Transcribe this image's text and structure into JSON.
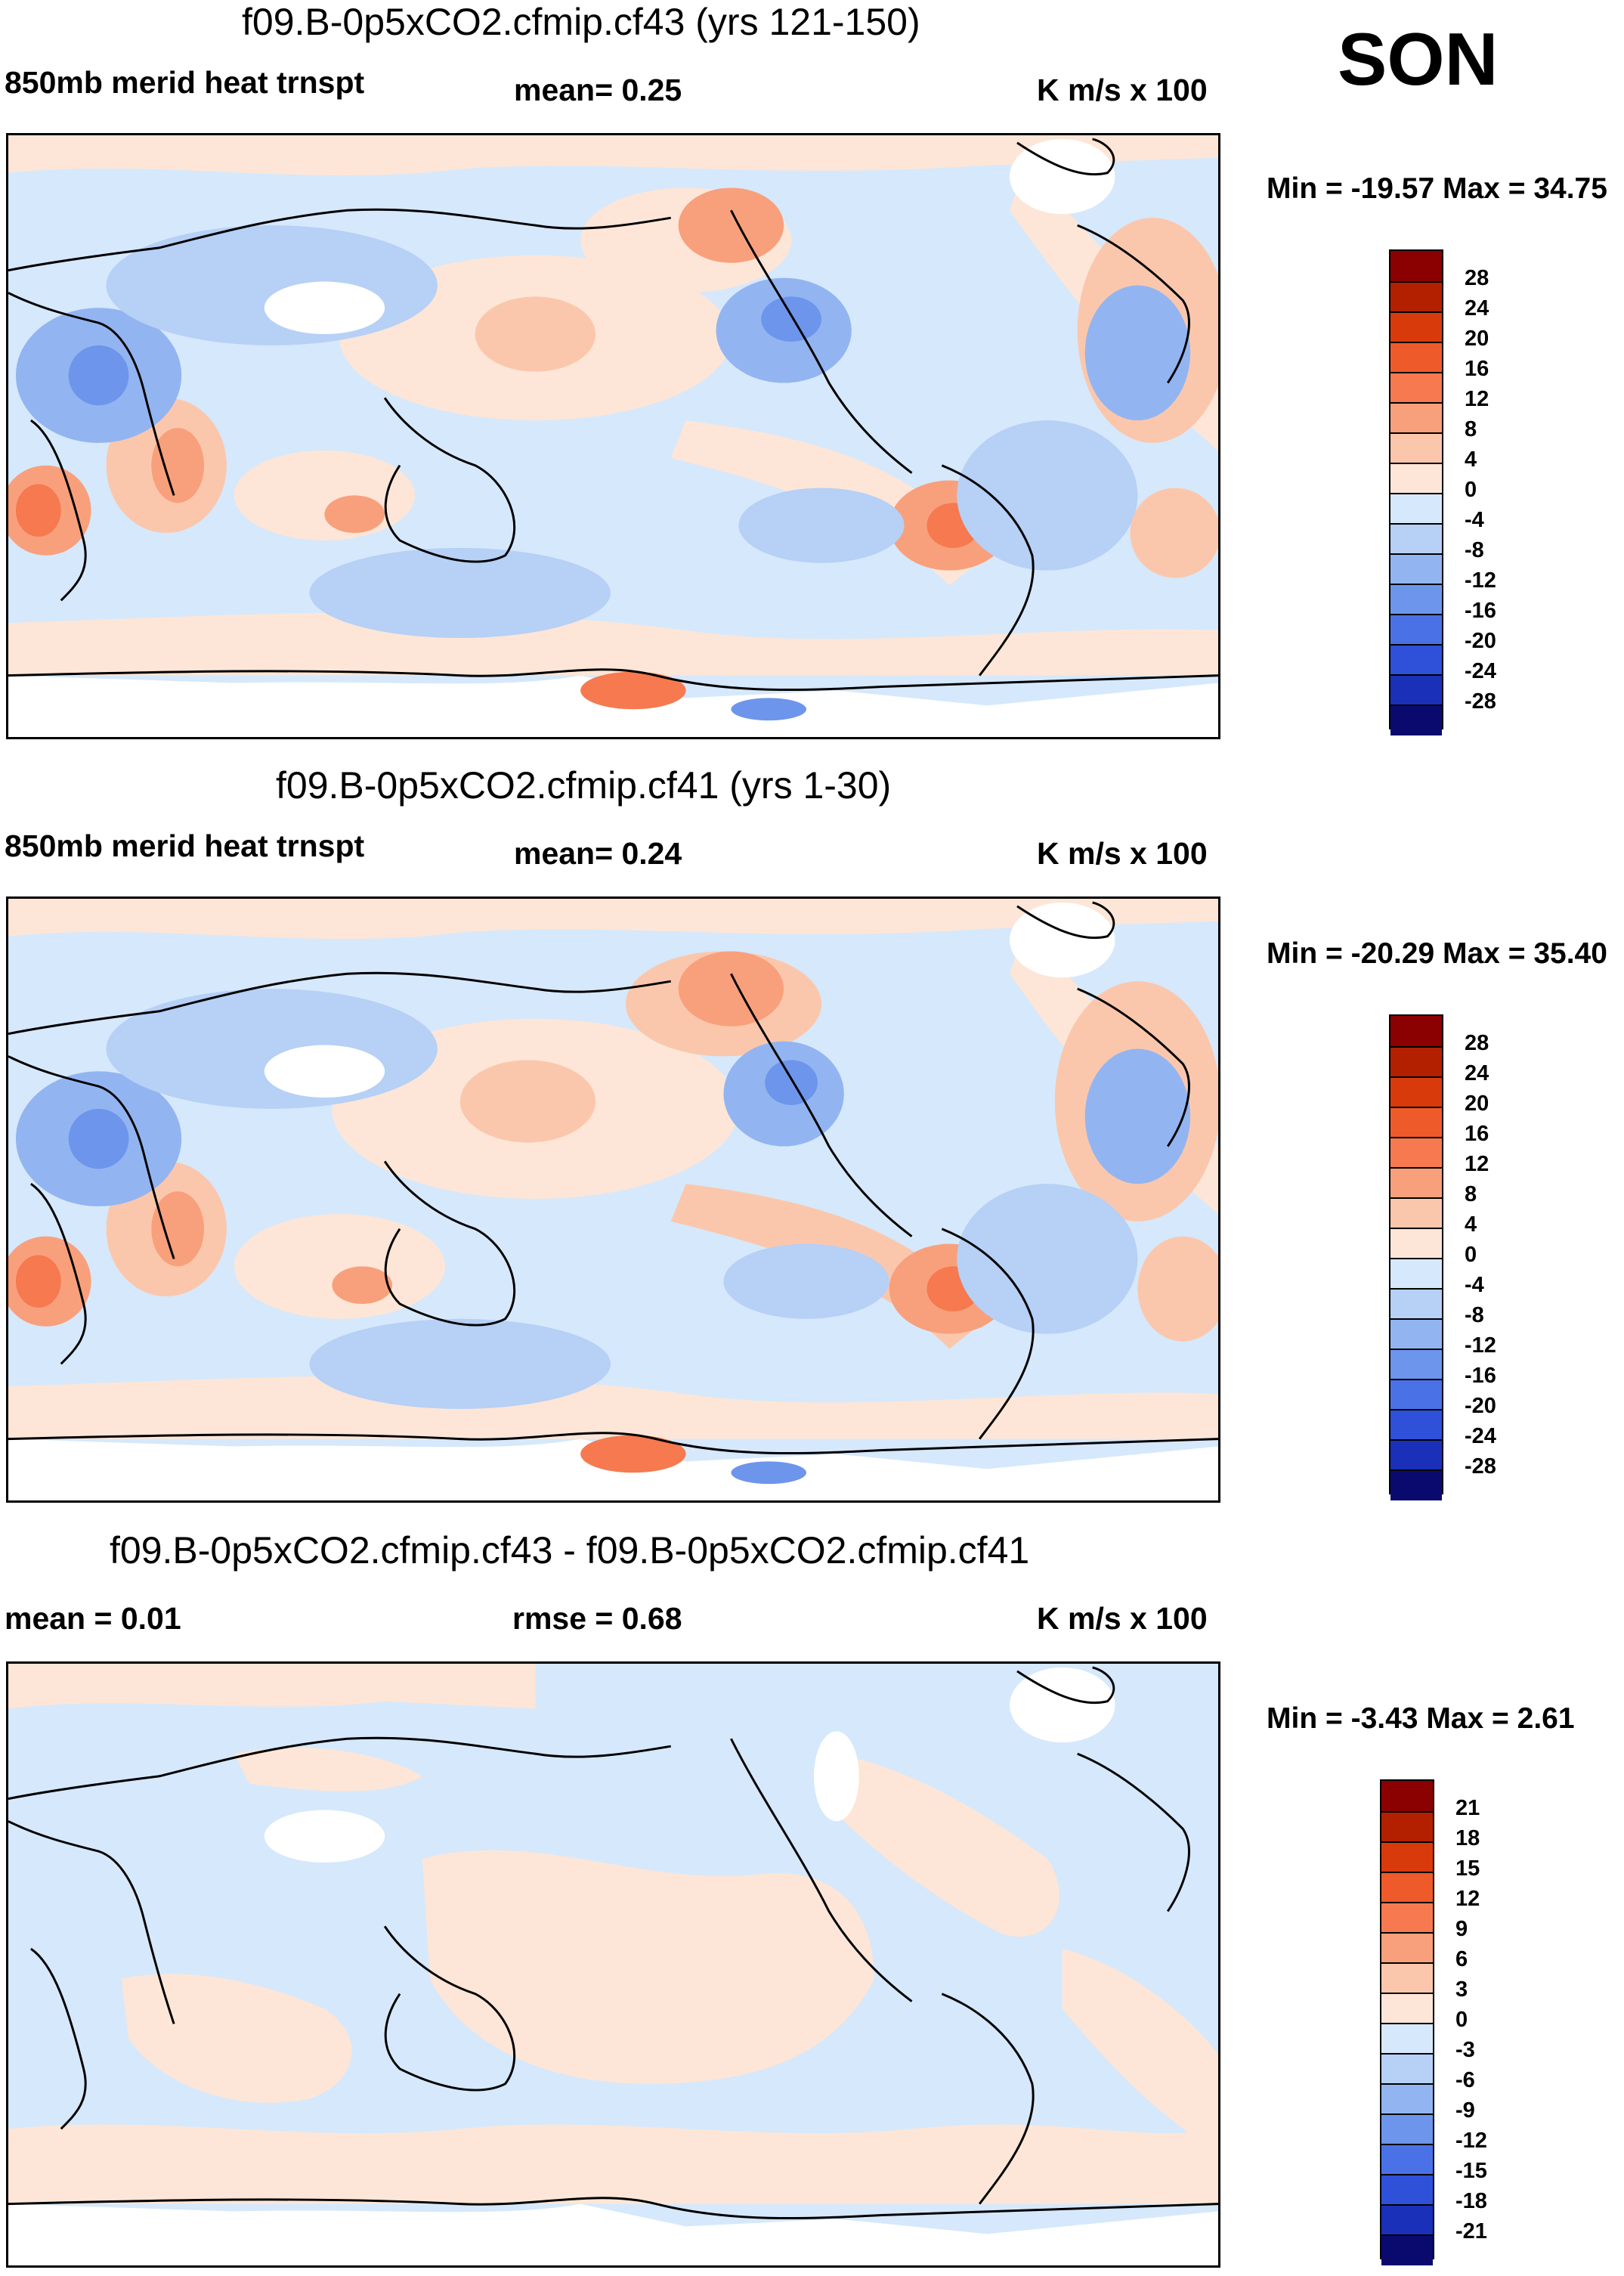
{
  "season": "SON",
  "units": "K m/s x 100",
  "panels": [
    {
      "title": "f09.B-0p5xCO2.cfmip.cf43 (yrs 121-150)",
      "left_label": "850mb merid heat trnspt",
      "stat_label": "mean=  0.25",
      "units": "K m/s x 100",
      "minmax": "Min = -19.57 Max =  34.75",
      "levels": [
        "28",
        "24",
        "20",
        "16",
        "12",
        "8",
        "4",
        "0",
        "-4",
        "-8",
        "-12",
        "-16",
        "-20",
        "-24",
        "-28"
      ]
    },
    {
      "title": "f09.B-0p5xCO2.cfmip.cf41 (yrs 1-30)",
      "left_label": "850mb merid heat trnspt",
      "stat_label": "mean=  0.24",
      "units": "K m/s x 100",
      "minmax": "Min = -20.29 Max =  35.40",
      "levels": [
        "28",
        "24",
        "20",
        "16",
        "12",
        "8",
        "4",
        "0",
        "-4",
        "-8",
        "-12",
        "-16",
        "-20",
        "-24",
        "-28"
      ]
    },
    {
      "title": "f09.B-0p5xCO2.cfmip.cf43 - f09.B-0p5xCO2.cfmip.cf41",
      "left_label": "mean =  0.01",
      "stat_label": "rmse =  0.68",
      "units": "K m/s x 100",
      "minmax": "Min =  -3.43 Max =   2.61",
      "levels": [
        "21",
        "18",
        "15",
        "12",
        "9",
        "6",
        "3",
        "0",
        "-3",
        "-6",
        "-9",
        "-12",
        "-15",
        "-18",
        "-21"
      ]
    }
  ],
  "colors": [
    "#8b0000",
    "#b22000",
    "#d83a0c",
    "#ef5a2a",
    "#f6794f",
    "#f8a07c",
    "#fbc7ac",
    "#fde6d7",
    "#d6e8fb",
    "#b6d0f6",
    "#92b5f1",
    "#6d95ec",
    "#4a72e6",
    "#2f50d9",
    "#1a30b8",
    "#0a0a6e"
  ],
  "swatch_colors": [
    "#8b0000",
    "#b22000",
    "#d83a0c",
    "#ef5a2a",
    "#f6794f",
    "#f8a07c",
    "#fbc7ac",
    "#fde6d7",
    "#d6e8fb",
    "#b6d0f6",
    "#92b5f1",
    "#6d95ec",
    "#4a72e6",
    "#2f50d9",
    "#1a30b8",
    "#0a0a6e"
  ]
}
